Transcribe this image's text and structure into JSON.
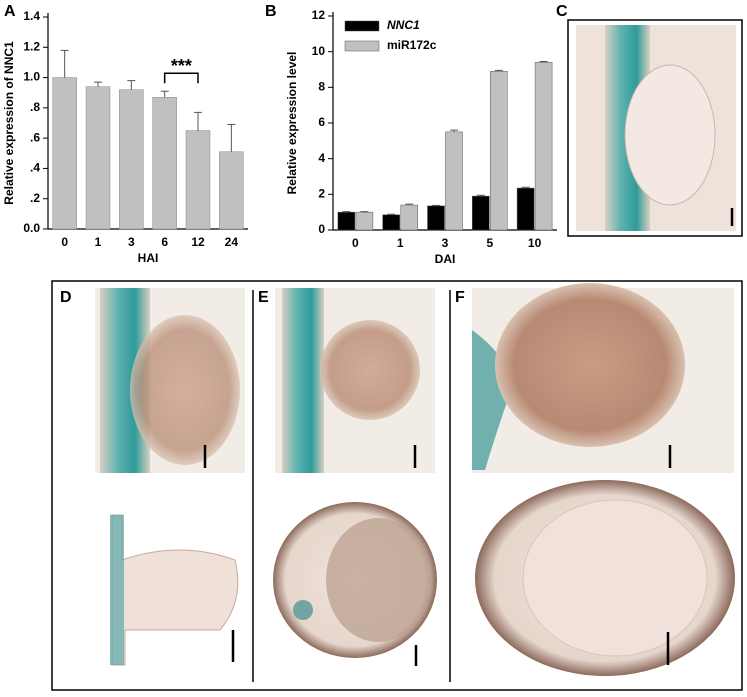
{
  "chart_data": [
    {
      "type": "bar",
      "panel": "A",
      "ylabel": "Relative expression of NNC1",
      "xlabel": "HAI",
      "categories": [
        "0",
        "1",
        "3",
        "6",
        "12",
        "24"
      ],
      "values": [
        1.0,
        0.94,
        0.92,
        0.87,
        0.65,
        0.51
      ],
      "errors": [
        0.18,
        0.03,
        0.06,
        0.04,
        0.12,
        0.18
      ],
      "color": "#c0c0c0",
      "annotation": "***",
      "ylim": [
        0,
        1.4
      ],
      "yticks": [
        {
          "value": 0,
          "label": "0.0"
        },
        {
          "value": 0.2,
          "label": ".2"
        },
        {
          "value": 0.4,
          "label": ".4"
        },
        {
          "value": 0.6,
          "label": ".6"
        },
        {
          "value": 0.8,
          "label": ".8"
        },
        {
          "value": 1.0,
          "label": "1.0"
        },
        1.2,
        1.4
      ]
    },
    {
      "type": "grouped-bar",
      "panel": "B",
      "ylabel": "Relative expression level",
      "xlabel": "DAI",
      "categories": [
        "0",
        "1",
        "3",
        "5",
        "10"
      ],
      "series": [
        {
          "name": "NNC1",
          "color": "#000000",
          "values": [
            1.0,
            0.85,
            1.35,
            1.9,
            2.35
          ],
          "errors": [
            0.03,
            0.03,
            0.03,
            0.05,
            0.05
          ]
        },
        {
          "name": "miR172c",
          "color": "#c0c0c0",
          "values": [
            1.0,
            1.4,
            5.5,
            8.9,
            9.4
          ],
          "errors": [
            0.03,
            0.05,
            0.1,
            0.05,
            0.05
          ]
        }
      ],
      "legend": "upper left",
      "ylim": [
        0,
        12
      ],
      "yticks": [
        0,
        2,
        4,
        6,
        8,
        10,
        12
      ]
    }
  ],
  "image_panels": [
    {
      "label": "C"
    },
    {
      "label": "D"
    },
    {
      "label": "E"
    },
    {
      "label": "F"
    }
  ]
}
